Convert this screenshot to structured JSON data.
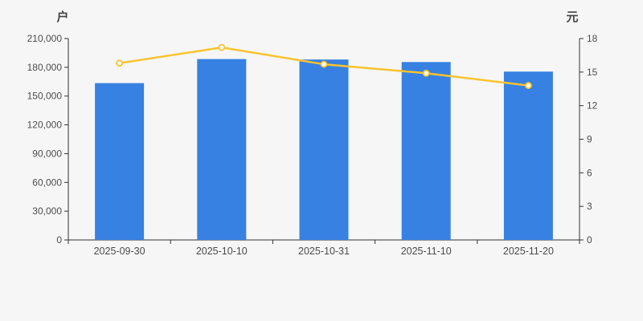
{
  "chart_data": {
    "type": "combo-bar-line",
    "categories": [
      "2025-09-30",
      "2025-10-10",
      "2025-10-31",
      "2025-11-10",
      "2025-11-20"
    ],
    "series": [
      {
        "type": "bar",
        "axis": "left",
        "color": "#3781e2",
        "values": [
          163500,
          188600,
          188100,
          185500,
          175500
        ]
      },
      {
        "type": "line",
        "axis": "right",
        "color": "#fbc32c",
        "marker": "circle-white-fill",
        "values": [
          15.8,
          17.2,
          15.7,
          14.9,
          13.8
        ]
      }
    ],
    "left_axis": {
      "unit": "户",
      "min": 0,
      "max": 210000,
      "step": 30000,
      "tick_labels": [
        "0",
        "30,000",
        "60,000",
        "90,000",
        "120,000",
        "150,000",
        "180,000",
        "210,000"
      ]
    },
    "right_axis": {
      "unit": "元",
      "min": 0,
      "max": 18,
      "step": 3,
      "tick_labels": [
        "0",
        "3",
        "6",
        "9",
        "12",
        "15",
        "18"
      ]
    },
    "grid": false,
    "legend": false,
    "background": "#f6f6f7",
    "axis_color": "#333333",
    "tick_text_color": "#4d4d4d"
  }
}
